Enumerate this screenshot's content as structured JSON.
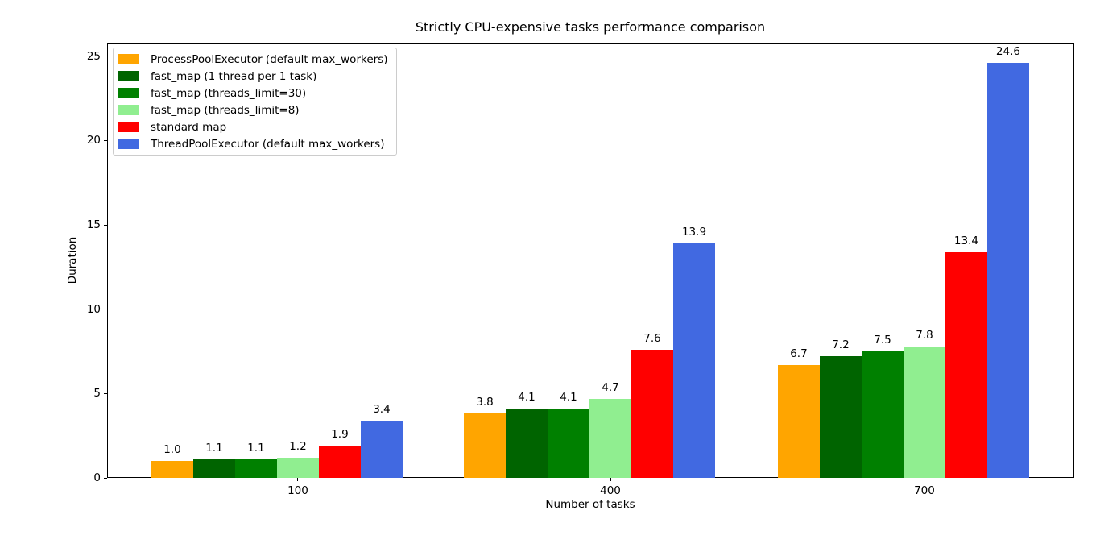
{
  "chart_data": {
    "type": "bar",
    "title": "Strictly CPU-expensive tasks performance comparison",
    "xlabel": "Number of tasks",
    "ylabel": "Duration",
    "categories": [
      "100",
      "400",
      "700"
    ],
    "series": [
      {
        "name": "ProcessPoolExecutor (default max_workers)",
        "color": "#FFA500",
        "values": [
          1.0,
          3.8,
          6.7
        ]
      },
      {
        "name": "fast_map (1 thread per 1 task)",
        "color": "#006400",
        "values": [
          1.1,
          4.1,
          7.2
        ]
      },
      {
        "name": "fast_map (threads_limit=30)",
        "color": "#008000",
        "values": [
          1.1,
          4.1,
          7.5
        ]
      },
      {
        "name": "fast_map (threads_limit=8)",
        "color": "#90EE90",
        "values": [
          1.2,
          4.7,
          7.8
        ]
      },
      {
        "name": "standard map",
        "color": "#FF0000",
        "values": [
          1.9,
          7.6,
          13.4
        ]
      },
      {
        "name": "ThreadPoolExecutor (default max_workers)",
        "color": "#4169E1",
        "values": [
          3.4,
          13.9,
          24.6
        ]
      }
    ],
    "yticks": [
      0,
      5,
      10,
      15,
      20,
      25
    ],
    "ylim": [
      0,
      25.8
    ],
    "bar_value_labels": true,
    "value_label_decimals": 1,
    "legend_position": "upper left",
    "grid": false,
    "background_color": "#ffffff",
    "axis_color": "#000000"
  }
}
